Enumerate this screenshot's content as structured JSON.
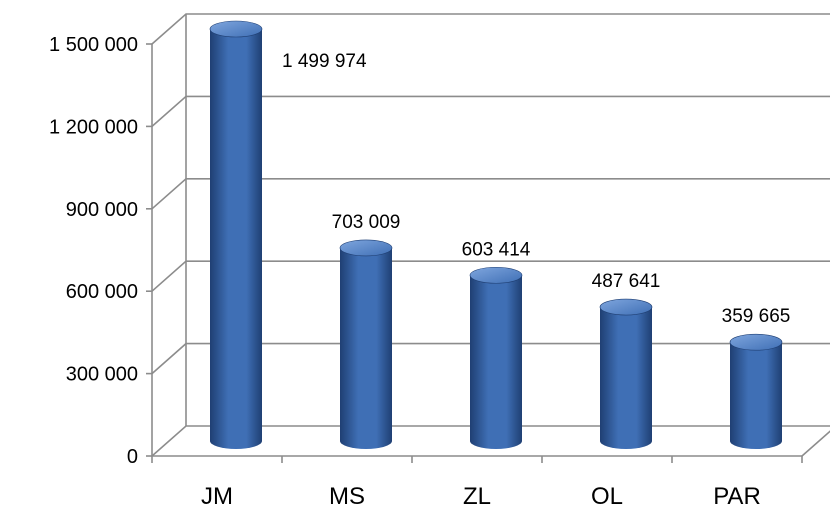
{
  "chart_data": {
    "type": "bar",
    "style": "3d-cylinder",
    "categories": [
      "JM",
      "MS",
      "ZL",
      "OL",
      "PAR"
    ],
    "values": [
      1499974,
      703009,
      603414,
      487641,
      359665
    ],
    "data_labels": [
      "1 499 974",
      "703 009",
      "603 414",
      "487 641",
      "359 665"
    ],
    "y_ticks": [
      0,
      300000,
      600000,
      900000,
      1200000,
      1500000
    ],
    "y_tick_labels": [
      "0",
      "300 000",
      "600 000",
      "900 000",
      "1 200 000",
      "1 500 000"
    ],
    "ylim": [
      0,
      1500000
    ],
    "title": "",
    "xlabel": "",
    "ylabel": "",
    "grid": true,
    "legend": "none",
    "bar_color": "#3f6fb5",
    "bar_highlight": "#7fa6de",
    "bar_shadow": "#1f3f73",
    "grid_color": "#8c8c8c"
  }
}
